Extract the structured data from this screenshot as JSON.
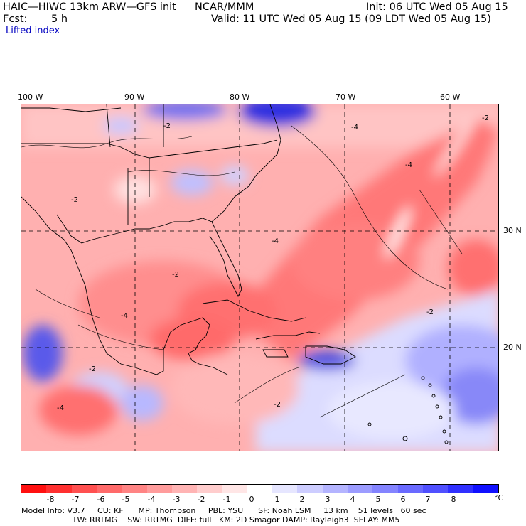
{
  "header": {
    "model_title": "HAIC—HIWC 13km ARW—GFS init",
    "center": "NCAR/MMM",
    "init": "Init: 06 UTC Wed 05 Aug 15",
    "fcst_label": "Fcst:",
    "fcst_value": "5 h",
    "valid": "Valid: 11 UTC Wed 05 Aug 15 (09 LDT Wed 05 Aug 15)",
    "field": "Lifted index"
  },
  "map": {
    "longitude_labels": [
      "100 W",
      "90 W",
      "80 W",
      "70 W",
      "60 W"
    ],
    "latitude_labels": [
      "30 N",
      "20 N"
    ],
    "contour_labels": [
      "-2",
      "-4"
    ],
    "colors": {
      "land_outline": "#000000",
      "grid": "#000000",
      "warm": "#f06060",
      "cool": "#5060e0"
    }
  },
  "colorbar": {
    "tick_labels": [
      "-8",
      "-7",
      "-6",
      "-5",
      "-4",
      "-3",
      "-2",
      "-1",
      "0",
      "1",
      "2",
      "3",
      "4",
      "5",
      "6",
      "7",
      "8"
    ],
    "unit": "°C",
    "colors": [
      "#ff1010",
      "#ff3030",
      "#ff5050",
      "#ff6a6a",
      "#ff8484",
      "#ff9c9c",
      "#ffb4b4",
      "#ffcdcd",
      "#ffe6e6",
      "#ffffff",
      "#e6e6ff",
      "#cdcdff",
      "#b4b4ff",
      "#9c9cff",
      "#8484ff",
      "#6a6aff",
      "#5050ff",
      "#3030ff",
      "#1010ff"
    ]
  },
  "model_info": {
    "line1": "Model Info: V3.7     CU: KF      MP: Thompson     PBL: YSU      SF: Noah LSM     13 km    51 levels   60 sec",
    "line2": "                     LW: RRTMG    SW: RRTMG  DIFF: full   KM: 2D Smagor DAMP: Rayleigh3  SFLAY: MM5"
  }
}
